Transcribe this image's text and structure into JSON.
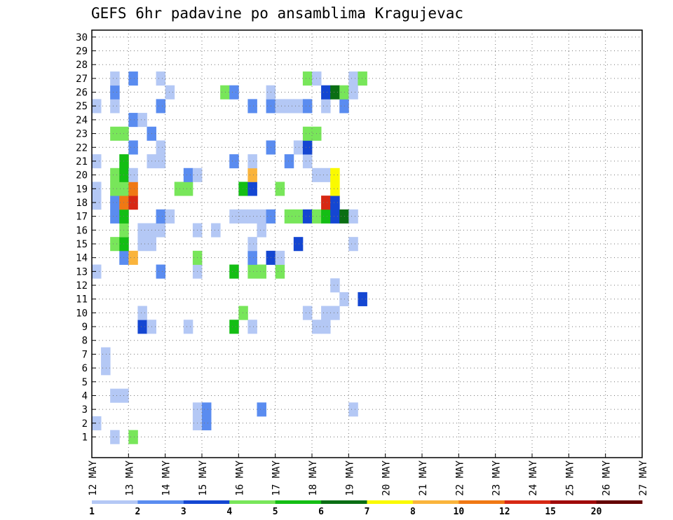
{
  "chart_data": {
    "type": "heatmap",
    "title": "GEFS 6hr padavine po ansamblima Kragujevac",
    "x_tick_labels": [
      "12 MAY",
      "13 MAY",
      "14 MAY",
      "15 MAY",
      "16 MAY",
      "17 MAY",
      "18 MAY",
      "19 MAY",
      "20 MAY",
      "21 MAY",
      "22 MAY",
      "23 MAY",
      "24 MAY",
      "25 MAY",
      "26 MAY",
      "27 MAY"
    ],
    "x_range_days": [
      12,
      27
    ],
    "y_tick_labels": [
      "1",
      "2",
      "3",
      "4",
      "5",
      "6",
      "7",
      "8",
      "9",
      "10",
      "11",
      "12",
      "13",
      "14",
      "15",
      "16",
      "17",
      "18",
      "19",
      "20",
      "21",
      "22",
      "23",
      "24",
      "25",
      "26",
      "27",
      "28",
      "29",
      "30"
    ],
    "y_range": [
      0,
      30
    ],
    "grid": true,
    "colorbar": {
      "boundaries": [
        "1",
        "2",
        "3",
        "4",
        "5",
        "6",
        "7",
        "8",
        "10",
        "12",
        "15",
        "20"
      ],
      "colors": [
        "#b4c8f5",
        "#5a8cf0",
        "#1446d2",
        "#78e65a",
        "#14be14",
        "#0a6e14",
        "#fafa00",
        "#fab43c",
        "#f07814",
        "#d72814",
        "#a00a0a",
        "#640000"
      ]
    },
    "cells": [
      [
        1,
        2,
        0
      ],
      [
        1,
        4,
        3
      ],
      [
        2,
        0,
        0
      ],
      [
        2,
        11,
        0
      ],
      [
        2,
        12,
        1
      ],
      [
        3,
        11,
        0
      ],
      [
        3,
        12,
        1
      ],
      [
        3,
        18,
        1
      ],
      [
        3,
        28,
        0
      ],
      [
        4,
        2,
        0
      ],
      [
        4,
        3,
        0
      ],
      [
        6,
        1,
        0
      ],
      [
        7,
        1,
        0
      ],
      [
        9,
        5,
        2
      ],
      [
        9,
        6,
        0
      ],
      [
        9,
        10,
        0
      ],
      [
        9,
        15,
        4
      ],
      [
        9,
        17,
        0
      ],
      [
        9,
        24,
        0
      ],
      [
        9,
        25,
        0
      ],
      [
        10,
        5,
        0
      ],
      [
        10,
        16,
        3
      ],
      [
        10,
        23,
        0
      ],
      [
        10,
        25,
        0
      ],
      [
        10,
        26,
        0
      ],
      [
        11,
        27,
        0
      ],
      [
        11,
        29,
        2
      ],
      [
        12,
        26,
        0
      ],
      [
        13,
        0,
        0
      ],
      [
        13,
        7,
        1
      ],
      [
        13,
        11,
        0
      ],
      [
        13,
        15,
        4
      ],
      [
        13,
        17,
        3
      ],
      [
        13,
        18,
        3
      ],
      [
        13,
        20,
        3
      ],
      [
        14,
        3,
        1
      ],
      [
        14,
        4,
        7
      ],
      [
        14,
        11,
        3
      ],
      [
        14,
        17,
        1
      ],
      [
        14,
        19,
        2
      ],
      [
        14,
        20,
        0
      ],
      [
        15,
        2,
        3
      ],
      [
        15,
        3,
        4
      ],
      [
        15,
        5,
        0
      ],
      [
        15,
        6,
        0
      ],
      [
        15,
        17,
        0
      ],
      [
        15,
        22,
        2
      ],
      [
        15,
        28,
        0
      ],
      [
        16,
        3,
        3
      ],
      [
        16,
        5,
        0
      ],
      [
        16,
        6,
        0
      ],
      [
        16,
        7,
        0
      ],
      [
        16,
        11,
        0
      ],
      [
        16,
        13,
        0
      ],
      [
        16,
        18,
        0
      ],
      [
        17,
        2,
        1
      ],
      [
        17,
        3,
        4
      ],
      [
        17,
        7,
        1
      ],
      [
        17,
        8,
        0
      ],
      [
        17,
        15,
        0
      ],
      [
        17,
        16,
        0
      ],
      [
        17,
        17,
        0
      ],
      [
        17,
        18,
        0
      ],
      [
        17,
        19,
        1
      ],
      [
        17,
        21,
        3
      ],
      [
        17,
        22,
        3
      ],
      [
        17,
        23,
        2
      ],
      [
        17,
        24,
        3
      ],
      [
        17,
        25,
        4
      ],
      [
        17,
        26,
        2
      ],
      [
        17,
        27,
        5
      ],
      [
        17,
        28,
        0
      ],
      [
        18,
        0,
        0
      ],
      [
        18,
        2,
        1
      ],
      [
        18,
        3,
        8
      ],
      [
        18,
        4,
        9
      ],
      [
        18,
        25,
        9
      ],
      [
        18,
        26,
        2
      ],
      [
        19,
        0,
        0
      ],
      [
        19,
        2,
        3
      ],
      [
        19,
        3,
        3
      ],
      [
        19,
        4,
        8
      ],
      [
        19,
        9,
        3
      ],
      [
        19,
        10,
        3
      ],
      [
        19,
        16,
        4
      ],
      [
        19,
        17,
        2
      ],
      [
        19,
        20,
        3
      ],
      [
        19,
        26,
        6
      ],
      [
        20,
        2,
        3
      ],
      [
        20,
        3,
        4
      ],
      [
        20,
        4,
        0
      ],
      [
        20,
        10,
        1
      ],
      [
        20,
        11,
        0
      ],
      [
        20,
        17,
        7
      ],
      [
        20,
        24,
        0
      ],
      [
        20,
        25,
        0
      ],
      [
        20,
        26,
        6
      ],
      [
        21,
        0,
        0
      ],
      [
        21,
        3,
        4
      ],
      [
        21,
        6,
        0
      ],
      [
        21,
        7,
        0
      ],
      [
        21,
        15,
        1
      ],
      [
        21,
        17,
        0
      ],
      [
        21,
        21,
        1
      ],
      [
        21,
        23,
        0
      ],
      [
        22,
        4,
        1
      ],
      [
        22,
        7,
        0
      ],
      [
        22,
        19,
        1
      ],
      [
        22,
        22,
        0
      ],
      [
        22,
        23,
        2
      ],
      [
        23,
        2,
        3
      ],
      [
        23,
        3,
        3
      ],
      [
        23,
        6,
        1
      ],
      [
        23,
        23,
        3
      ],
      [
        23,
        24,
        3
      ],
      [
        24,
        4,
        1
      ],
      [
        24,
        5,
        0
      ],
      [
        25,
        0,
        0
      ],
      [
        25,
        2,
        0
      ],
      [
        25,
        7,
        1
      ],
      [
        25,
        17,
        1
      ],
      [
        25,
        19,
        1
      ],
      [
        25,
        20,
        0
      ],
      [
        25,
        21,
        0
      ],
      [
        25,
        22,
        0
      ],
      [
        25,
        23,
        1
      ],
      [
        25,
        25,
        0
      ],
      [
        25,
        27,
        1
      ],
      [
        26,
        2,
        1
      ],
      [
        26,
        8,
        0
      ],
      [
        26,
        14,
        3
      ],
      [
        26,
        15,
        1
      ],
      [
        26,
        19,
        0
      ],
      [
        26,
        25,
        2
      ],
      [
        26,
        26,
        5
      ],
      [
        26,
        27,
        3
      ],
      [
        26,
        28,
        0
      ],
      [
        27,
        2,
        0
      ],
      [
        27,
        4,
        1
      ],
      [
        27,
        7,
        0
      ],
      [
        27,
        23,
        3
      ],
      [
        27,
        24,
        0
      ],
      [
        27,
        28,
        0
      ],
      [
        27,
        29,
        3
      ]
    ]
  }
}
